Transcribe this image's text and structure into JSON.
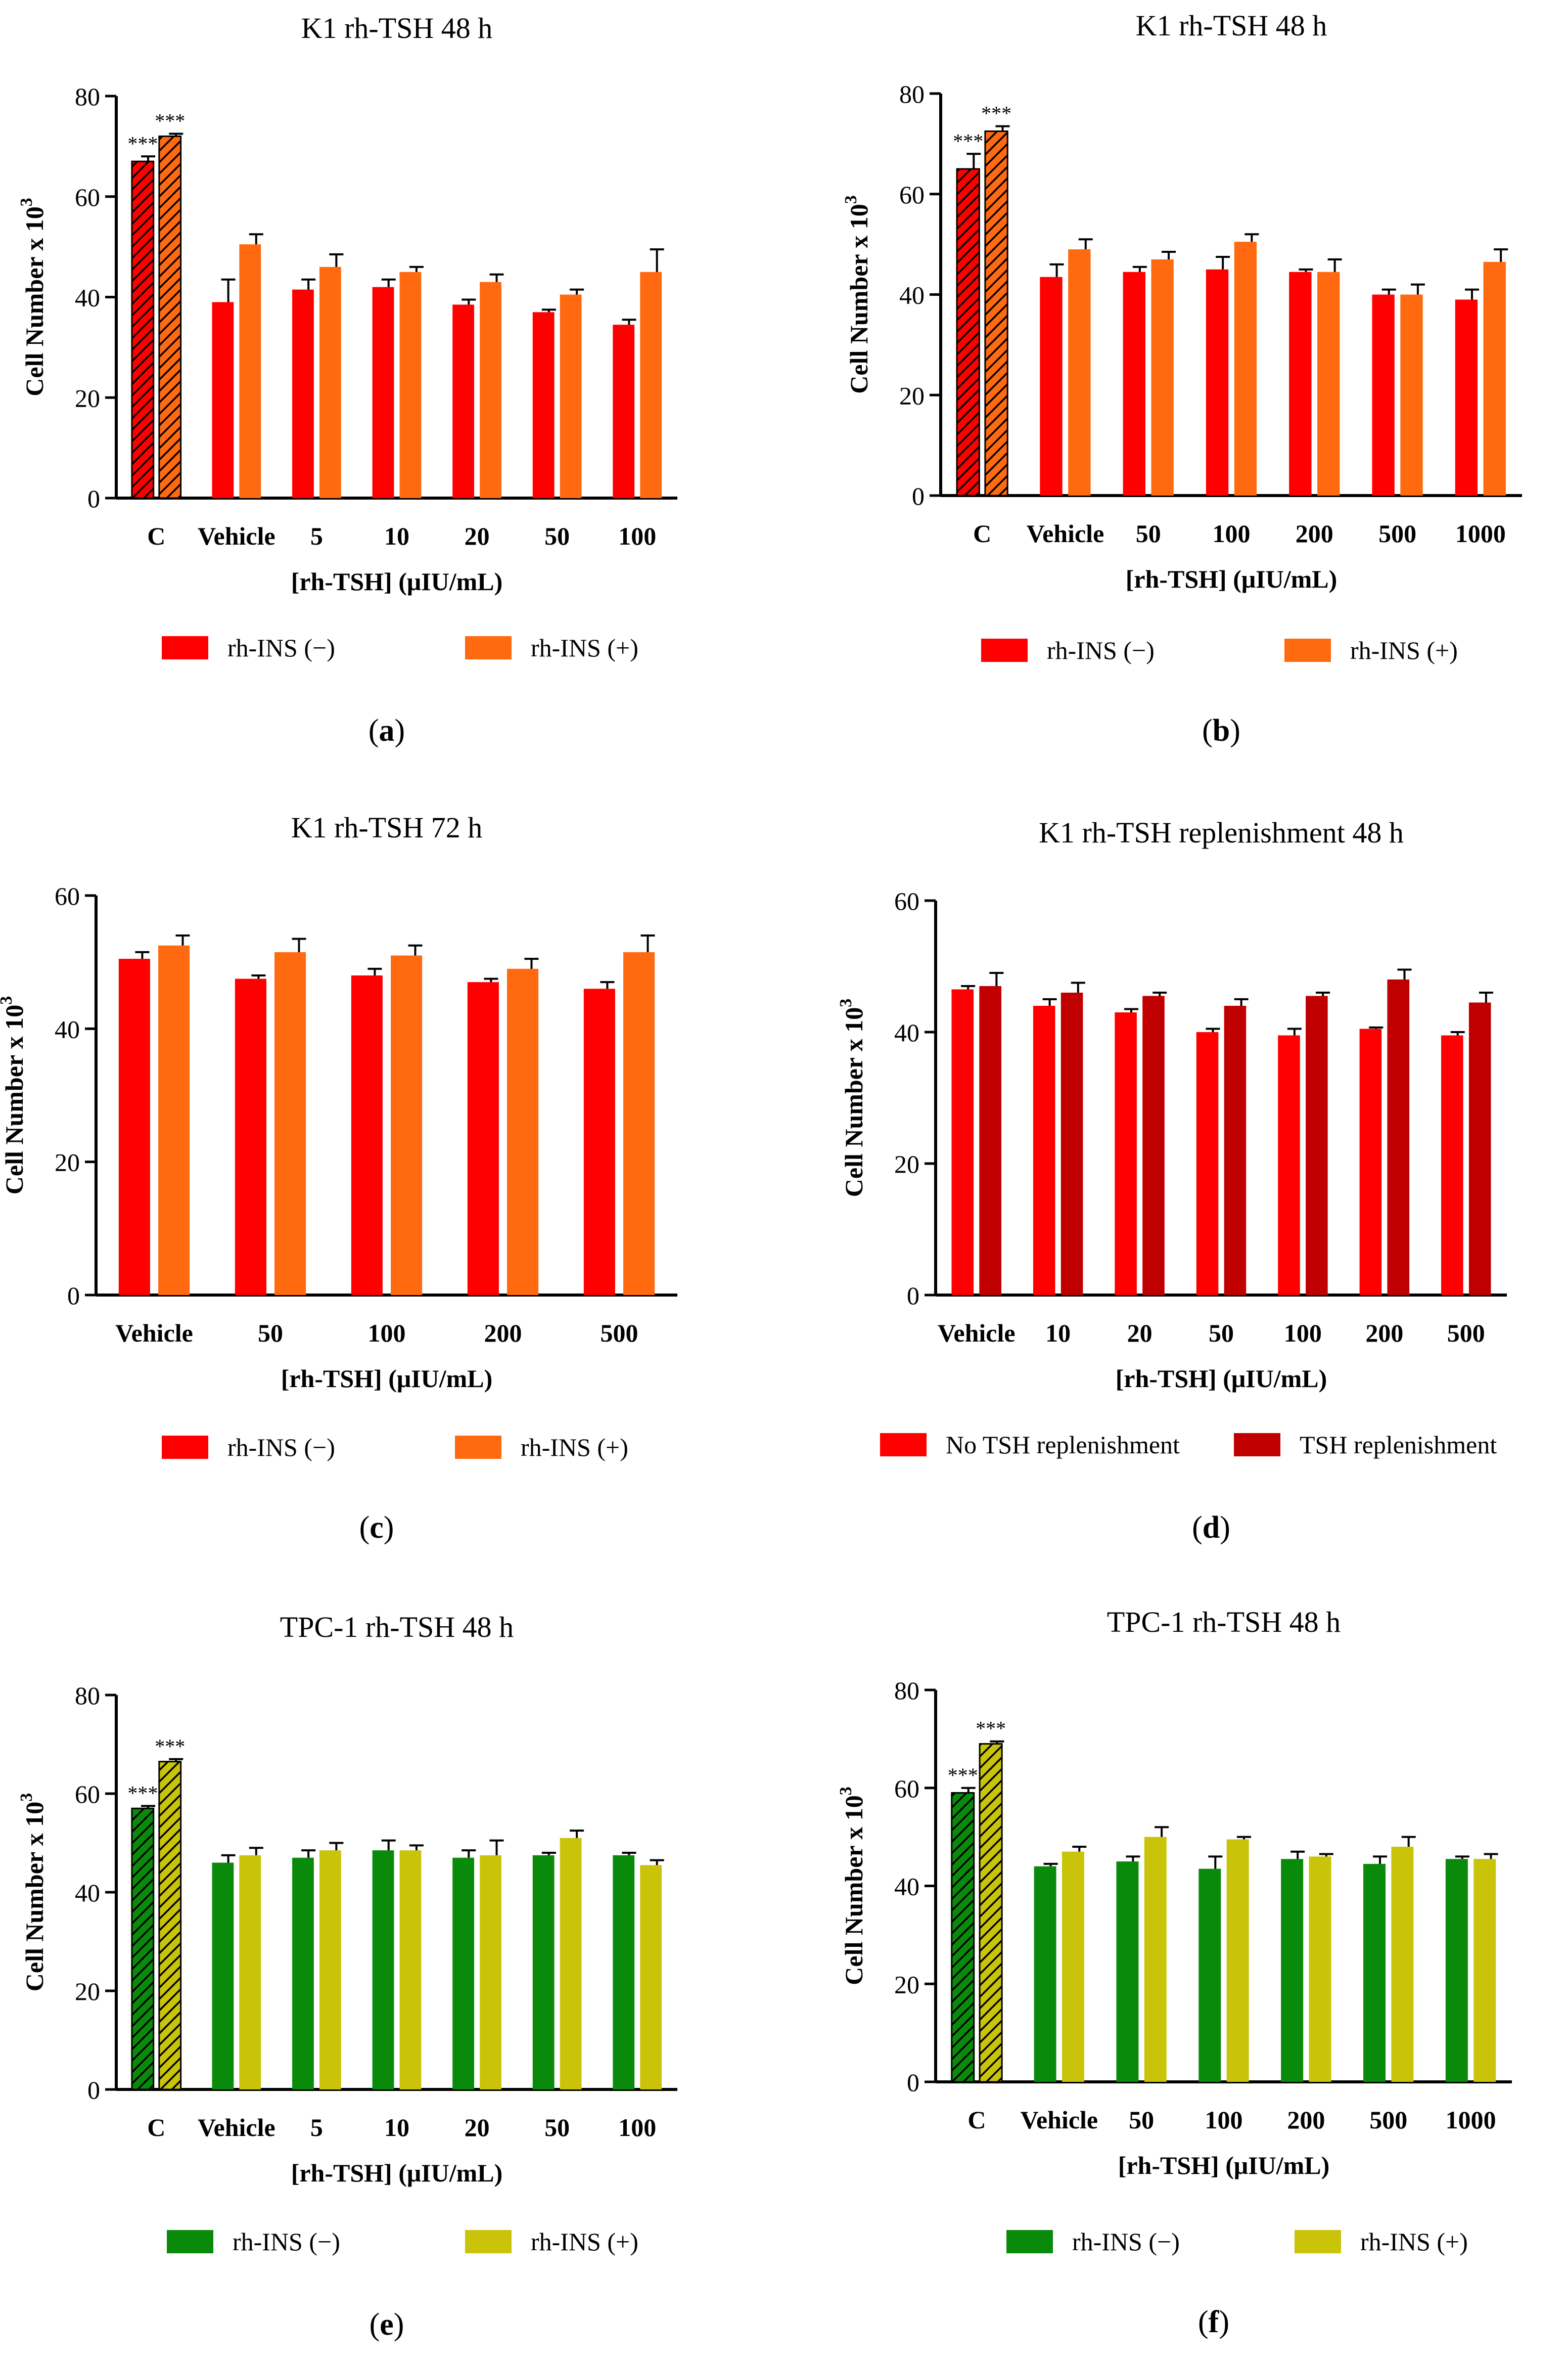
{
  "figure": {
    "colors": {
      "red": "#ff0000",
      "orange": "#ff6a10",
      "dark_red": "#c00000",
      "green": "#0a8a0a",
      "yellow_green": "#c9c40a",
      "axis": "#000000"
    }
  },
  "chart_data": [
    {
      "id": "a",
      "panel_label": "a",
      "type": "bar",
      "title": "K1 rh-TSH 48 h",
      "ylabel": "Cell Number x 10",
      "ylabel_exponent": "3",
      "xlabel": "[rh-TSH] (μIU/mL)",
      "ylim": [
        0,
        80
      ],
      "yticks": [
        0,
        20,
        40,
        60,
        80
      ],
      "categories": [
        "C",
        "Vehicle",
        "5",
        "10",
        "20",
        "50",
        "100"
      ],
      "hatched_categories": [
        "C"
      ],
      "significance_labels": [
        "***",
        "***"
      ],
      "series": [
        {
          "name": "rh-INS (−)",
          "color": "#ff0000",
          "values": [
            67,
            39,
            41.5,
            42,
            38.5,
            37,
            34.5
          ],
          "errors": [
            1,
            4.5,
            2,
            1.5,
            1,
            0.5,
            1
          ]
        },
        {
          "name": "rh-INS (+)",
          "color": "#ff6a10",
          "values": [
            72,
            50.5,
            46,
            45,
            43,
            40.5,
            45
          ],
          "errors": [
            0.5,
            2,
            2.5,
            1,
            1.5,
            1,
            4.5
          ]
        }
      ]
    },
    {
      "id": "b",
      "panel_label": "b",
      "type": "bar",
      "title": "K1 rh-TSH 48 h",
      "ylabel": "Cell Number x 10",
      "ylabel_exponent": "3",
      "xlabel": "[rh-TSH] (μIU/mL)",
      "ylim": [
        0,
        80
      ],
      "yticks": [
        0,
        20,
        40,
        60,
        80
      ],
      "categories": [
        "C",
        "Vehicle",
        "50",
        "100",
        "200",
        "500",
        "1000"
      ],
      "hatched_categories": [
        "C"
      ],
      "significance_labels": [
        "***",
        "***"
      ],
      "series": [
        {
          "name": "rh-INS (−)",
          "color": "#ff0000",
          "values": [
            65,
            43.5,
            44.5,
            45,
            44.5,
            40,
            39
          ],
          "errors": [
            3,
            2.5,
            1,
            2.5,
            0.5,
            1,
            2
          ]
        },
        {
          "name": "rh-INS (+)",
          "color": "#ff6a10",
          "values": [
            72.5,
            49,
            47,
            50.5,
            44.5,
            40,
            46.5
          ],
          "errors": [
            1,
            2,
            1.5,
            1.5,
            2.5,
            2,
            2.5
          ]
        }
      ]
    },
    {
      "id": "c",
      "panel_label": "c",
      "type": "bar",
      "title": "K1 rh-TSH 72 h",
      "ylabel": "Cell Number x 10",
      "ylabel_exponent": "3",
      "xlabel": "[rh-TSH] (μIU/mL)",
      "ylim": [
        0,
        60
      ],
      "yticks": [
        0,
        20,
        40,
        60
      ],
      "categories": [
        "Vehicle",
        "50",
        "100",
        "200",
        "500"
      ],
      "hatched_categories": [],
      "significance_labels": [],
      "series": [
        {
          "name": "rh-INS (−)",
          "color": "#ff0000",
          "values": [
            50.5,
            47.5,
            48,
            47,
            46
          ],
          "errors": [
            1,
            0.5,
            1,
            0.5,
            1
          ]
        },
        {
          "name": "rh-INS (+)",
          "color": "#ff6a10",
          "values": [
            52.5,
            51.5,
            51,
            49,
            51.5
          ],
          "errors": [
            1.5,
            2,
            1.5,
            1.5,
            2.5
          ]
        }
      ]
    },
    {
      "id": "d",
      "panel_label": "d",
      "type": "bar",
      "title": "K1 rh-TSH replenishment 48 h",
      "ylabel": "Cell Number x 10",
      "ylabel_exponent": "3",
      "xlabel": "[rh-TSH] (μIU/mL)",
      "ylim": [
        0,
        60
      ],
      "yticks": [
        0,
        20,
        40,
        60
      ],
      "categories": [
        "Vehicle",
        "10",
        "20",
        "50",
        "100",
        "200",
        "500"
      ],
      "hatched_categories": [],
      "significance_labels": [],
      "series": [
        {
          "name": "No TSH replenishment",
          "color": "#ff0000",
          "values": [
            46.5,
            44,
            43,
            40,
            39.5,
            40.5,
            39.5
          ],
          "errors": [
            0.5,
            1,
            0.5,
            0.5,
            1,
            0.2,
            0.5
          ]
        },
        {
          "name": "TSH replenishment",
          "color": "#c00000",
          "values": [
            47,
            46,
            45.5,
            44,
            45.5,
            48,
            44.5
          ],
          "errors": [
            2,
            1.5,
            0.5,
            1,
            0.5,
            1.5,
            1.5
          ]
        }
      ]
    },
    {
      "id": "e",
      "panel_label": "e",
      "type": "bar",
      "title": "TPC-1 rh-TSH 48 h",
      "ylabel": "Cell Number x 10",
      "ylabel_exponent": "3",
      "xlabel": "[rh-TSH] (μIU/mL)",
      "ylim": [
        0,
        80
      ],
      "yticks": [
        0,
        20,
        40,
        60,
        80
      ],
      "categories": [
        "C",
        "Vehicle",
        "5",
        "10",
        "20",
        "50",
        "100"
      ],
      "hatched_categories": [
        "C"
      ],
      "significance_labels": [
        "***",
        "***"
      ],
      "series": [
        {
          "name": "rh-INS (−)",
          "color": "#0a8a0a",
          "values": [
            57,
            46,
            47,
            48.5,
            47,
            47.5,
            47.5
          ],
          "errors": [
            0.5,
            1.5,
            1.5,
            2,
            1.5,
            0.5,
            0.5
          ]
        },
        {
          "name": "rh-INS (+)",
          "color": "#c9c40a",
          "values": [
            66.5,
            47.5,
            48.5,
            48.5,
            47.5,
            51,
            45.5
          ],
          "errors": [
            0.5,
            1.5,
            1.5,
            1,
            3,
            1.5,
            1
          ]
        }
      ]
    },
    {
      "id": "f",
      "panel_label": "f",
      "type": "bar",
      "title": "TPC-1 rh-TSH 48 h",
      "ylabel": "Cell Number x 10",
      "ylabel_exponent": "3",
      "xlabel": "[rh-TSH] (μIU/mL)",
      "ylim": [
        0,
        80
      ],
      "yticks": [
        0,
        20,
        40,
        60,
        80
      ],
      "categories": [
        "C",
        "Vehicle",
        "50",
        "100",
        "200",
        "500",
        "1000"
      ],
      "hatched_categories": [
        "C"
      ],
      "significance_labels": [
        "***",
        "***"
      ],
      "series": [
        {
          "name": "rh-INS (−)",
          "color": "#0a8a0a",
          "values": [
            59,
            44,
            45,
            43.5,
            45.5,
            44.5,
            45.5
          ],
          "errors": [
            1,
            0.5,
            1,
            2.5,
            1.5,
            1.5,
            0.5
          ]
        },
        {
          "name": "rh-INS (+)",
          "color": "#c9c40a",
          "values": [
            69,
            47,
            50,
            49.5,
            46,
            48,
            45.5
          ],
          "errors": [
            0.5,
            1,
            2,
            0.5,
            0.5,
            2,
            1
          ]
        }
      ]
    }
  ]
}
